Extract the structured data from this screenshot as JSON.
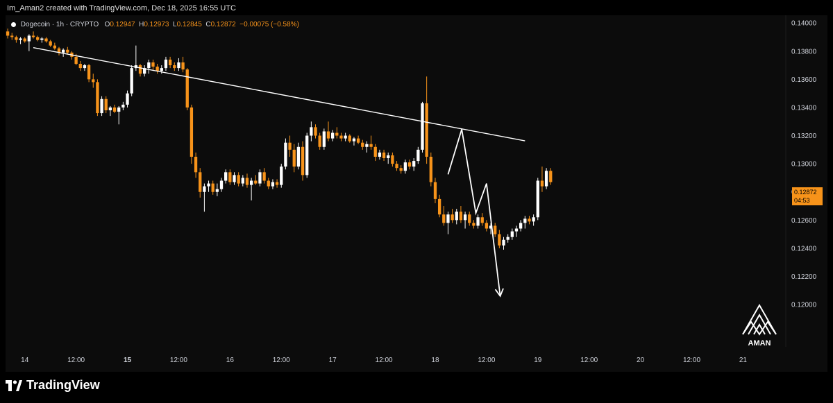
{
  "header": {
    "credit": "Im_Aman2 created with TradingView.com, Dec 18, 2025 16:55 UTC"
  },
  "legend": {
    "symbol": "Dogecoin · 1h · CRYPTO",
    "open_label": "O",
    "open": "0.12947",
    "high_label": "H",
    "high": "0.12973",
    "low_label": "L",
    "low": "0.12845",
    "close_label": "C",
    "close": "0.12872",
    "change": "−0.00075 (−0.58%)"
  },
  "price_tag": {
    "price": "0.12872",
    "countdown": "04:53"
  },
  "logo": {
    "text": "AMAN"
  },
  "footer": {
    "brand": "TradingView",
    "brand_icon": "tradingview-logo-icon"
  },
  "colors": {
    "up": "#ffffff",
    "down": "#f7931a",
    "background": "#0c0c0c",
    "axis_text": "#d1d4dc",
    "drawing": "#ffffff"
  },
  "chart_data": {
    "type": "candlestick",
    "x_axis": {
      "ticks": [
        {
          "label": "14",
          "t": 0
        },
        {
          "label": "12:00",
          "t": 12
        },
        {
          "label": "15",
          "t": 24
        },
        {
          "label": "12:00",
          "t": 36
        },
        {
          "label": "16",
          "t": 48
        },
        {
          "label": "12:00",
          "t": 60
        },
        {
          "label": "17",
          "t": 72
        },
        {
          "label": "12:00",
          "t": 84
        },
        {
          "label": "18",
          "t": 96
        },
        {
          "label": "12:00",
          "t": 108
        },
        {
          "label": "19",
          "t": 120
        },
        {
          "label": "12:00",
          "t": 132
        },
        {
          "label": "20",
          "t": 144
        },
        {
          "label": "12:00",
          "t": 156
        },
        {
          "label": "21",
          "t": 168
        }
      ],
      "bold_labels": [
        "15"
      ],
      "range_hours_since_dec14": [
        -4.5,
        178
      ]
    },
    "y_axis": {
      "ticks": [
        "0.14000",
        "0.13800",
        "0.13600",
        "0.13400",
        "0.13200",
        "0.13000",
        "0.12800",
        "0.12600",
        "0.12400",
        "0.12200",
        "0.12000"
      ],
      "range": [
        0.117,
        0.14055
      ]
    },
    "candles_t0_hours": -4,
    "candles": [
      [
        0.1394,
        0.1396,
        0.1389,
        0.1391
      ],
      [
        0.1391,
        0.1393,
        0.1388,
        0.139
      ],
      [
        0.139,
        0.1391,
        0.1386,
        0.1388
      ],
      [
        0.1388,
        0.139,
        0.1385,
        0.1389
      ],
      [
        0.1389,
        0.139,
        0.1386,
        0.1387
      ],
      [
        0.1387,
        0.1392,
        0.138,
        0.1391
      ],
      [
        0.1391,
        0.1394,
        0.1389,
        0.139
      ],
      [
        0.139,
        0.1391,
        0.1387,
        0.1388
      ],
      [
        0.1388,
        0.139,
        0.1386,
        0.1389
      ],
      [
        0.1389,
        0.139,
        0.1386,
        0.1387
      ],
      [
        0.1387,
        0.1388,
        0.1383,
        0.1384
      ],
      [
        0.1384,
        0.1386,
        0.1381,
        0.1382
      ],
      [
        0.1382,
        0.1383,
        0.1377,
        0.1379
      ],
      [
        0.1379,
        0.1382,
        0.1376,
        0.1381
      ],
      [
        0.1381,
        0.1383,
        0.1378,
        0.1379
      ],
      [
        0.1379,
        0.138,
        0.1374,
        0.1376
      ],
      [
        0.1376,
        0.1378,
        0.137,
        0.1371
      ],
      [
        0.1371,
        0.1373,
        0.1366,
        0.1368
      ],
      [
        0.1368,
        0.1371,
        0.1366,
        0.137
      ],
      [
        0.137,
        0.1371,
        0.1358,
        0.136
      ],
      [
        0.136,
        0.1364,
        0.1354,
        0.1358
      ],
      [
        0.1358,
        0.136,
        0.1334,
        0.1336
      ],
      [
        0.1336,
        0.1348,
        0.1334,
        0.1346
      ],
      [
        0.1346,
        0.1348,
        0.1336,
        0.1338
      ],
      [
        0.1338,
        0.1341,
        0.1334,
        0.134
      ],
      [
        0.134,
        0.1342,
        0.1336,
        0.1337
      ],
      [
        0.1337,
        0.1341,
        0.1328,
        0.134
      ],
      [
        0.134,
        0.1344,
        0.1338,
        0.1342
      ],
      [
        0.1342,
        0.1352,
        0.134,
        0.135
      ],
      [
        0.135,
        0.137,
        0.1348,
        0.1368
      ],
      [
        0.1368,
        0.1384,
        0.1366,
        0.137
      ],
      [
        0.137,
        0.1371,
        0.1362,
        0.1364
      ],
      [
        0.1364,
        0.137,
        0.1362,
        0.1368
      ],
      [
        0.1368,
        0.1374,
        0.1364,
        0.1372
      ],
      [
        0.1372,
        0.1374,
        0.1366,
        0.1369
      ],
      [
        0.1369,
        0.1371,
        0.1364,
        0.1366
      ],
      [
        0.1366,
        0.137,
        0.1364,
        0.1368
      ],
      [
        0.1368,
        0.1376,
        0.1366,
        0.1374
      ],
      [
        0.1374,
        0.1376,
        0.1368,
        0.137
      ],
      [
        0.137,
        0.1372,
        0.1366,
        0.1368
      ],
      [
        0.1368,
        0.1375,
        0.1366,
        0.1372
      ],
      [
        0.1372,
        0.1376,
        0.1365,
        0.1367
      ],
      [
        0.1367,
        0.1368,
        0.1338,
        0.134
      ],
      [
        0.134,
        0.1342,
        0.13,
        0.1305
      ],
      [
        0.1305,
        0.1308,
        0.129,
        0.1294
      ],
      [
        0.1294,
        0.1297,
        0.1276,
        0.128
      ],
      [
        0.128,
        0.1286,
        0.1266,
        0.1284
      ],
      [
        0.1284,
        0.1288,
        0.128,
        0.1286
      ],
      [
        0.1286,
        0.1288,
        0.1278,
        0.128
      ],
      [
        0.128,
        0.1286,
        0.1277,
        0.1282
      ],
      [
        0.1282,
        0.129,
        0.128,
        0.1288
      ],
      [
        0.1288,
        0.1296,
        0.1286,
        0.1294
      ],
      [
        0.1294,
        0.1296,
        0.1285,
        0.1287
      ],
      [
        0.1287,
        0.1294,
        0.1285,
        0.1292
      ],
      [
        0.1292,
        0.1294,
        0.1284,
        0.1286
      ],
      [
        0.1286,
        0.1292,
        0.1284,
        0.129
      ],
      [
        0.129,
        0.1293,
        0.1283,
        0.1285
      ],
      [
        0.1285,
        0.129,
        0.1274,
        0.1288
      ],
      [
        0.1288,
        0.1292,
        0.1285,
        0.1286
      ],
      [
        0.1286,
        0.1296,
        0.1284,
        0.1294
      ],
      [
        0.1294,
        0.1297,
        0.1286,
        0.1288
      ],
      [
        0.1288,
        0.129,
        0.1282,
        0.1284
      ],
      [
        0.1284,
        0.1289,
        0.1282,
        0.1287
      ],
      [
        0.1287,
        0.1289,
        0.1283,
        0.1285
      ],
      [
        0.1285,
        0.13,
        0.1283,
        0.1298
      ],
      [
        0.1298,
        0.1318,
        0.1296,
        0.1315
      ],
      [
        0.1315,
        0.132,
        0.1305,
        0.131
      ],
      [
        0.131,
        0.1314,
        0.1294,
        0.1298
      ],
      [
        0.1298,
        0.1315,
        0.1296,
        0.1312
      ],
      [
        0.1312,
        0.1316,
        0.1288,
        0.1292
      ],
      [
        0.1292,
        0.1322,
        0.129,
        0.132
      ],
      [
        0.132,
        0.133,
        0.1316,
        0.1326
      ],
      [
        0.1326,
        0.1328,
        0.1318,
        0.132
      ],
      [
        0.132,
        0.1322,
        0.131,
        0.1312
      ],
      [
        0.1312,
        0.1325,
        0.131,
        0.1323
      ],
      [
        0.1323,
        0.133,
        0.1316,
        0.1318
      ],
      [
        0.1318,
        0.1324,
        0.1316,
        0.1322
      ],
      [
        0.1322,
        0.1326,
        0.1318,
        0.132
      ],
      [
        0.132,
        0.1322,
        0.1316,
        0.1318
      ],
      [
        0.1318,
        0.1322,
        0.1316,
        0.132
      ],
      [
        0.132,
        0.1321,
        0.1315,
        0.1316
      ],
      [
        0.1316,
        0.1319,
        0.1313,
        0.1318
      ],
      [
        0.1318,
        0.132,
        0.1314,
        0.1315
      ],
      [
        0.1315,
        0.1317,
        0.131,
        0.1312
      ],
      [
        0.1312,
        0.1316,
        0.1308,
        0.1314
      ],
      [
        0.1314,
        0.132,
        0.131,
        0.1312
      ],
      [
        0.1312,
        0.1314,
        0.1302,
        0.1305
      ],
      [
        0.1305,
        0.131,
        0.1303,
        0.1308
      ],
      [
        0.1308,
        0.131,
        0.1302,
        0.1304
      ],
      [
        0.1304,
        0.1308,
        0.13,
        0.1306
      ],
      [
        0.1306,
        0.1308,
        0.1298,
        0.13
      ],
      [
        0.13,
        0.1302,
        0.1295,
        0.1297
      ],
      [
        0.1297,
        0.1299,
        0.1293,
        0.1295
      ],
      [
        0.1295,
        0.1303,
        0.1293,
        0.1301
      ],
      [
        0.1301,
        0.1303,
        0.1296,
        0.1298
      ],
      [
        0.1298,
        0.1304,
        0.1295,
        0.1302
      ],
      [
        0.1302,
        0.1312,
        0.13,
        0.131
      ],
      [
        0.131,
        0.1344,
        0.1308,
        0.1343
      ],
      [
        0.1343,
        0.1362,
        0.13,
        0.1305
      ],
      [
        0.1305,
        0.1308,
        0.1284,
        0.1287
      ],
      [
        0.1287,
        0.129,
        0.1272,
        0.1275
      ],
      [
        0.1275,
        0.1278,
        0.1262,
        0.1264
      ],
      [
        0.1264,
        0.127,
        0.1256,
        0.1258
      ],
      [
        0.1258,
        0.1266,
        0.125,
        0.1264
      ],
      [
        0.1264,
        0.1268,
        0.1258,
        0.126
      ],
      [
        0.126,
        0.1268,
        0.1257,
        0.1266
      ],
      [
        0.1266,
        0.127,
        0.1258,
        0.126
      ],
      [
        0.126,
        0.1266,
        0.1254,
        0.1264
      ],
      [
        0.1264,
        0.1266,
        0.1256,
        0.1258
      ],
      [
        0.1258,
        0.126,
        0.1254,
        0.1256
      ],
      [
        0.1256,
        0.1264,
        0.1254,
        0.1262
      ],
      [
        0.1262,
        0.1265,
        0.1256,
        0.1258
      ],
      [
        0.1258,
        0.126,
        0.1252,
        0.1254
      ],
      [
        0.1254,
        0.1258,
        0.125,
        0.1256
      ],
      [
        0.1256,
        0.1258,
        0.1248,
        0.125
      ],
      [
        0.125,
        0.1253,
        0.124,
        0.1242
      ],
      [
        0.1242,
        0.1248,
        0.1239,
        0.1246
      ],
      [
        0.1246,
        0.125,
        0.1244,
        0.1248
      ],
      [
        0.1248,
        0.1254,
        0.1246,
        0.1252
      ],
      [
        0.1252,
        0.1256,
        0.1248,
        0.1254
      ],
      [
        0.1254,
        0.126,
        0.1252,
        0.1258
      ],
      [
        0.1258,
        0.1263,
        0.1254,
        0.1261
      ],
      [
        0.1261,
        0.1263,
        0.1257,
        0.1259
      ],
      [
        0.1259,
        0.1264,
        0.1256,
        0.1262
      ],
      [
        0.1262,
        0.129,
        0.126,
        0.1288
      ],
      [
        0.1288,
        0.1298,
        0.128,
        0.1284
      ],
      [
        0.1284,
        0.1297,
        0.1282,
        0.1295
      ],
      [
        0.1295,
        0.1297,
        0.1285,
        0.1287
      ]
    ],
    "trendline": {
      "from": {
        "t": 2.0,
        "price": 0.13825
      },
      "to": {
        "t": 117.0,
        "price": 0.13163
      }
    },
    "projection": [
      {
        "t": 99.0,
        "price": 0.12925
      },
      {
        "t": 102.2,
        "price": 0.13245
      },
      {
        "t": 105.5,
        "price": 0.1265
      },
      {
        "t": 108.0,
        "price": 0.1286
      },
      {
        "t": 111.2,
        "price": 0.1206
      }
    ]
  }
}
